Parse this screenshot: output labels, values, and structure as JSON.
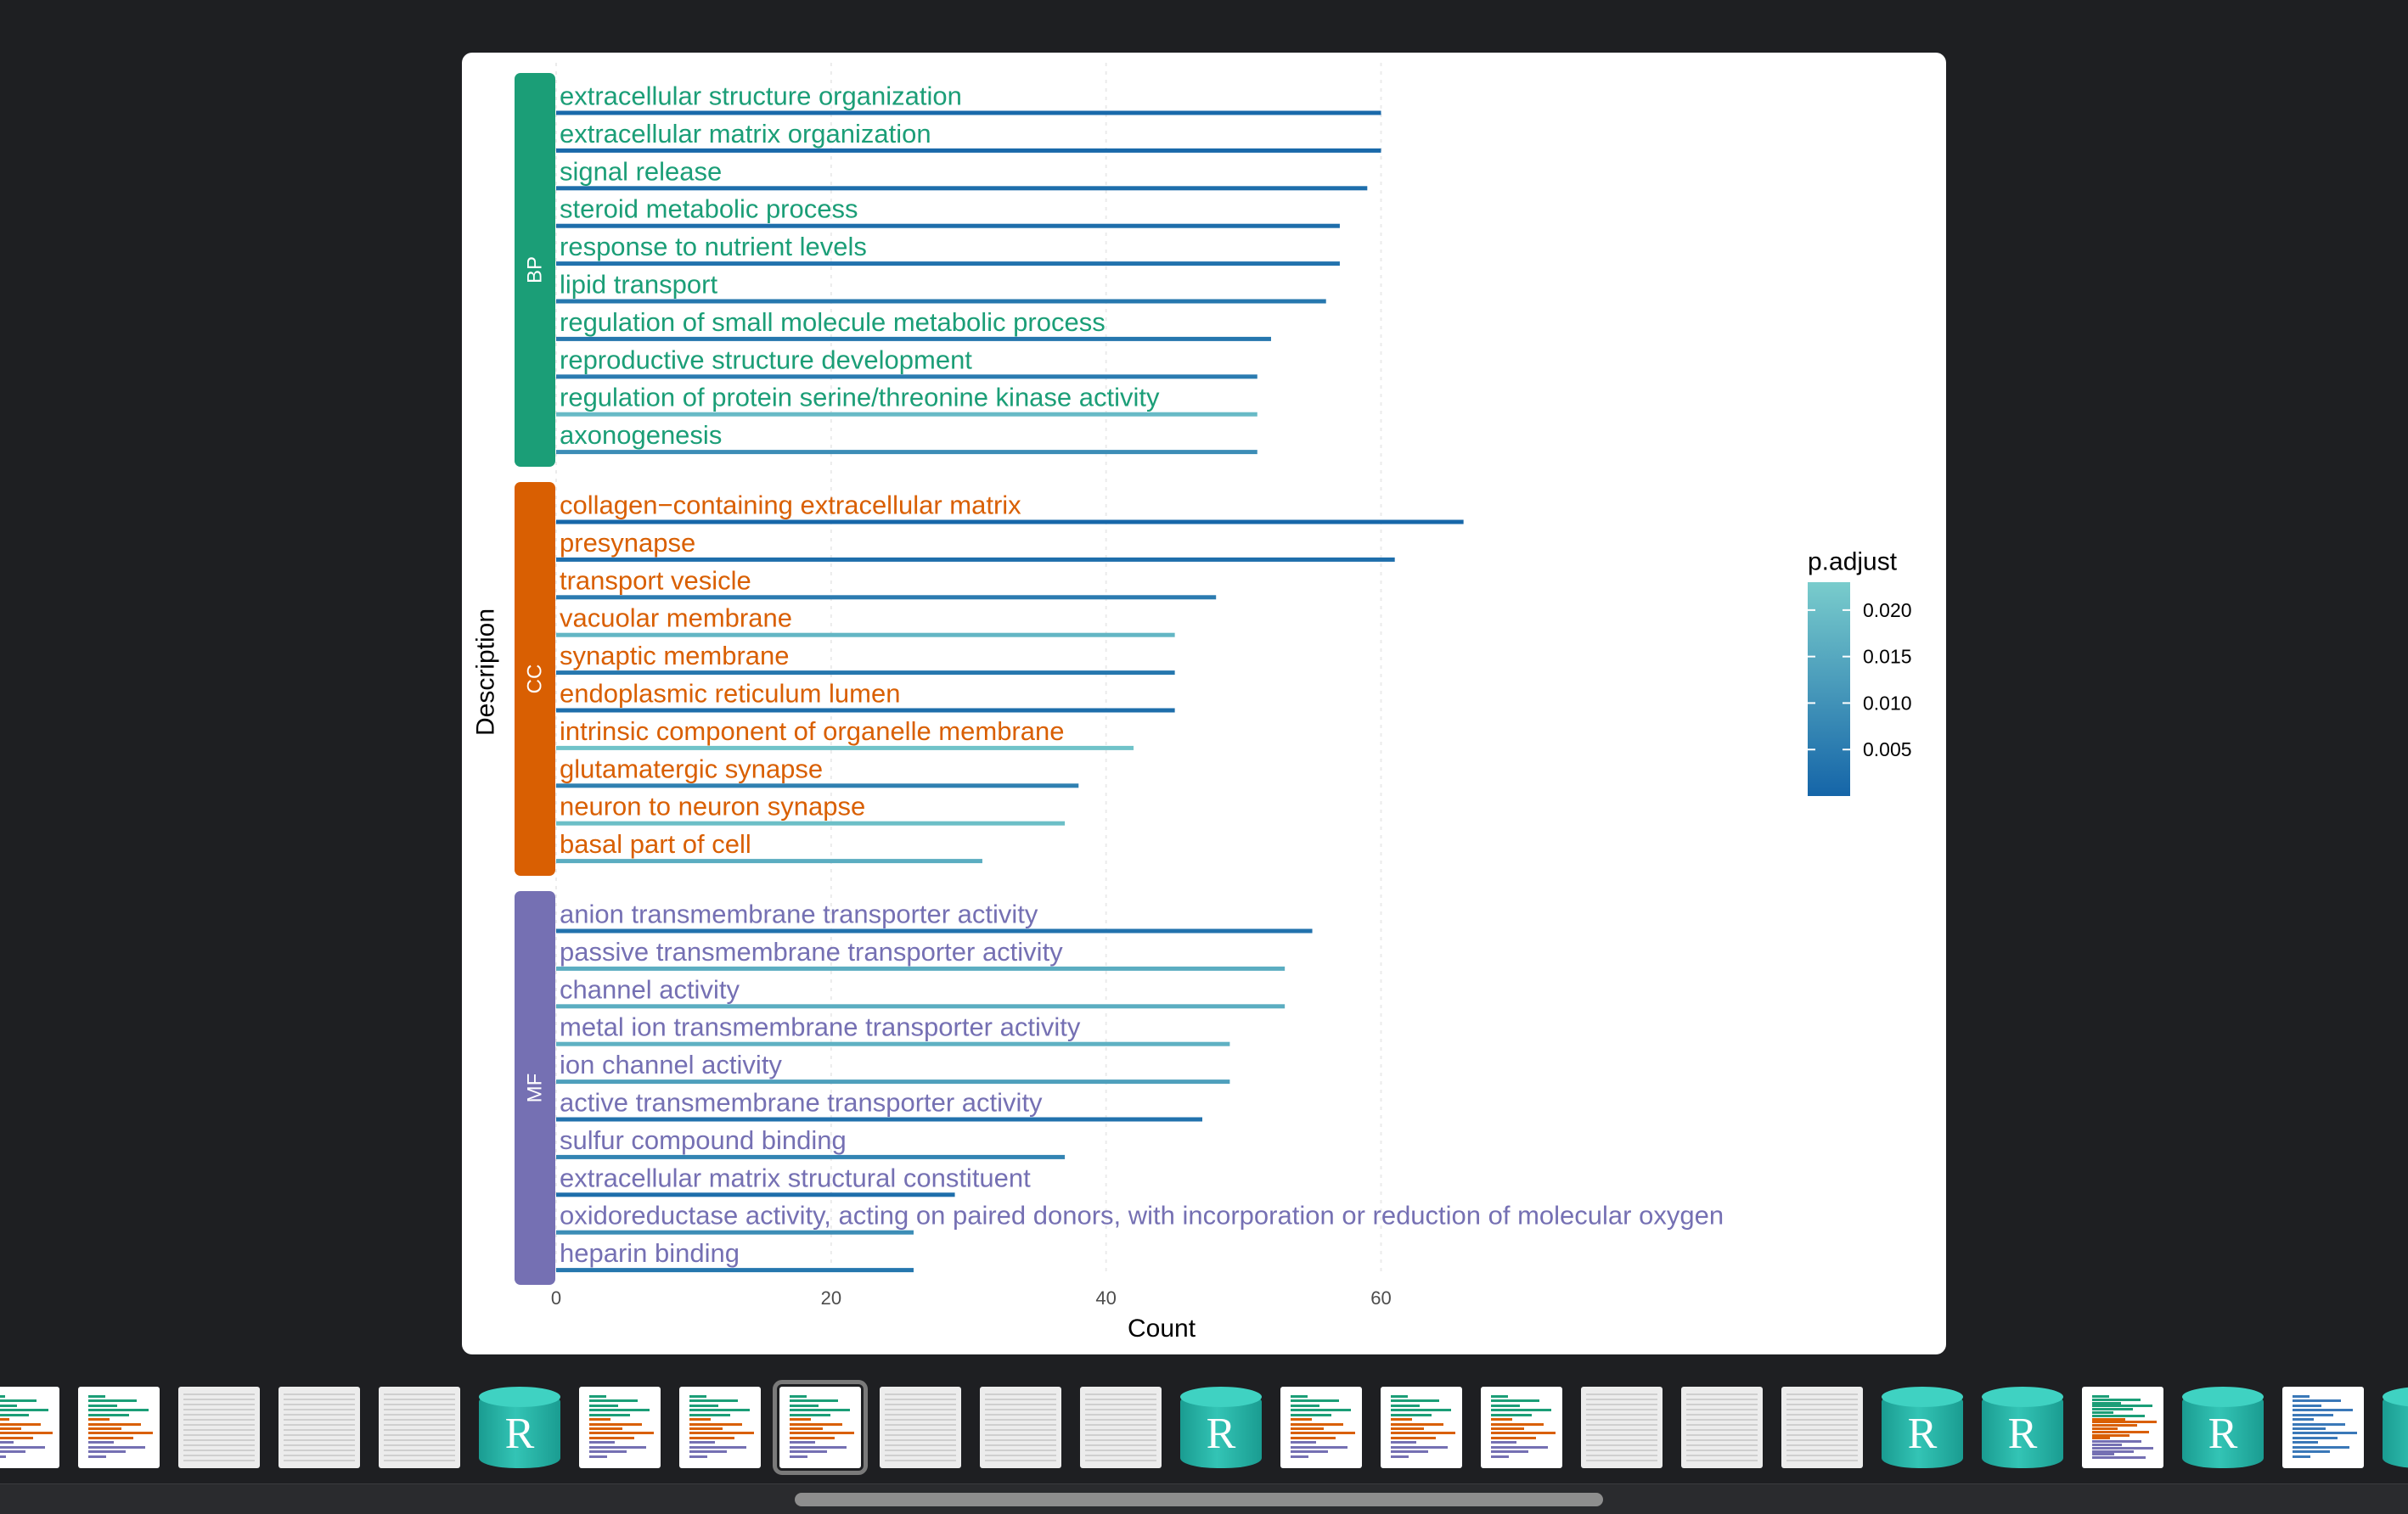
{
  "chart_data": {
    "type": "bar",
    "orientation": "horizontal",
    "xlabel": "Count",
    "ylabel": "Description",
    "xlim": [
      0,
      67
    ],
    "xticks": [
      0,
      20,
      40,
      60
    ],
    "legend": {
      "title": "p.adjust",
      "position": "right",
      "ticks": [
        "0.020",
        "0.015",
        "0.010",
        "0.005"
      ],
      "tick_values": [
        0.02,
        0.015,
        0.01,
        0.005
      ],
      "range": [
        0.0,
        0.023
      ],
      "color_low": "#1565a8",
      "color_high": "#79cccc"
    },
    "groups": [
      {
        "name": "BP",
        "color": "#1b9e77",
        "terms": [
          {
            "label": "extracellular structure organization",
            "count": 60,
            "p_adjust": 0.001
          },
          {
            "label": "extracellular matrix organization",
            "count": 60,
            "p_adjust": 0.001
          },
          {
            "label": "signal release",
            "count": 59,
            "p_adjust": 0.002
          },
          {
            "label": "steroid metabolic process",
            "count": 57,
            "p_adjust": 0.002
          },
          {
            "label": "response to nutrient levels",
            "count": 57,
            "p_adjust": 0.003
          },
          {
            "label": "lipid transport",
            "count": 56,
            "p_adjust": 0.004
          },
          {
            "label": "regulation of small molecule metabolic process",
            "count": 52,
            "p_adjust": 0.004
          },
          {
            "label": "reproductive structure development",
            "count": 51,
            "p_adjust": 0.005
          },
          {
            "label": "regulation of protein serine/threonine kinase activity",
            "count": 51,
            "p_adjust": 0.019
          },
          {
            "label": "axonogenesis",
            "count": 51,
            "p_adjust": 0.009
          }
        ]
      },
      {
        "name": "CC",
        "color": "#d95f02",
        "terms": [
          {
            "label": "collagen−containing extracellular matrix",
            "count": 66,
            "p_adjust": 0.0005
          },
          {
            "label": "presynapse",
            "count": 61,
            "p_adjust": 0.002
          },
          {
            "label": "transport vesicle",
            "count": 48,
            "p_adjust": 0.005
          },
          {
            "label": "vacuolar membrane",
            "count": 45,
            "p_adjust": 0.018
          },
          {
            "label": "synaptic membrane",
            "count": 45,
            "p_adjust": 0.004
          },
          {
            "label": "endoplasmic reticulum lumen",
            "count": 45,
            "p_adjust": 0.002
          },
          {
            "label": "intrinsic component of organelle membrane",
            "count": 42,
            "p_adjust": 0.021
          },
          {
            "label": "glutamatergic synapse",
            "count": 38,
            "p_adjust": 0.006
          },
          {
            "label": "neuron to neuron synapse",
            "count": 37,
            "p_adjust": 0.02
          },
          {
            "label": "basal part of cell",
            "count": 31,
            "p_adjust": 0.016
          }
        ]
      },
      {
        "name": "MF",
        "color": "#7570b3",
        "terms": [
          {
            "label": "anion transmembrane transporter activity",
            "count": 55,
            "p_adjust": 0.003
          },
          {
            "label": "passive transmembrane transporter activity",
            "count": 53,
            "p_adjust": 0.016
          },
          {
            "label": "channel activity",
            "count": 53,
            "p_adjust": 0.016
          },
          {
            "label": "metal ion transmembrane transporter activity",
            "count": 49,
            "p_adjust": 0.017
          },
          {
            "label": "ion channel activity",
            "count": 49,
            "p_adjust": 0.013
          },
          {
            "label": "active transmembrane transporter activity",
            "count": 47,
            "p_adjust": 0.003
          },
          {
            "label": "sulfur compound binding",
            "count": 37,
            "p_adjust": 0.007
          },
          {
            "label": "extracellular matrix structural constituent",
            "count": 29,
            "p_adjust": 0.002
          },
          {
            "label": "oxidoreductase activity, acting on paired donors, with incorporation or reduction of molecular oxygen",
            "count": 26,
            "p_adjust": 0.009
          },
          {
            "label": "heparin binding",
            "count": 26,
            "p_adjust": 0.004
          }
        ]
      }
    ]
  },
  "filmstrip": {
    "selected_index": 8,
    "r_icon_letter": "R",
    "thumbnails": [
      {
        "kind": "chart"
      },
      {
        "kind": "chart"
      },
      {
        "kind": "doc"
      },
      {
        "kind": "doc"
      },
      {
        "kind": "doc"
      },
      {
        "kind": "r-file"
      },
      {
        "kind": "chart"
      },
      {
        "kind": "chart"
      },
      {
        "kind": "chart"
      },
      {
        "kind": "doc"
      },
      {
        "kind": "doc"
      },
      {
        "kind": "doc"
      },
      {
        "kind": "r-file"
      },
      {
        "kind": "chart"
      },
      {
        "kind": "chart"
      },
      {
        "kind": "chart"
      },
      {
        "kind": "doc"
      },
      {
        "kind": "doc"
      },
      {
        "kind": "doc"
      },
      {
        "kind": "r-file"
      },
      {
        "kind": "r-file"
      },
      {
        "kind": "chart-tall"
      },
      {
        "kind": "r-file"
      },
      {
        "kind": "chart-wide"
      },
      {
        "kind": "r-file"
      }
    ]
  }
}
